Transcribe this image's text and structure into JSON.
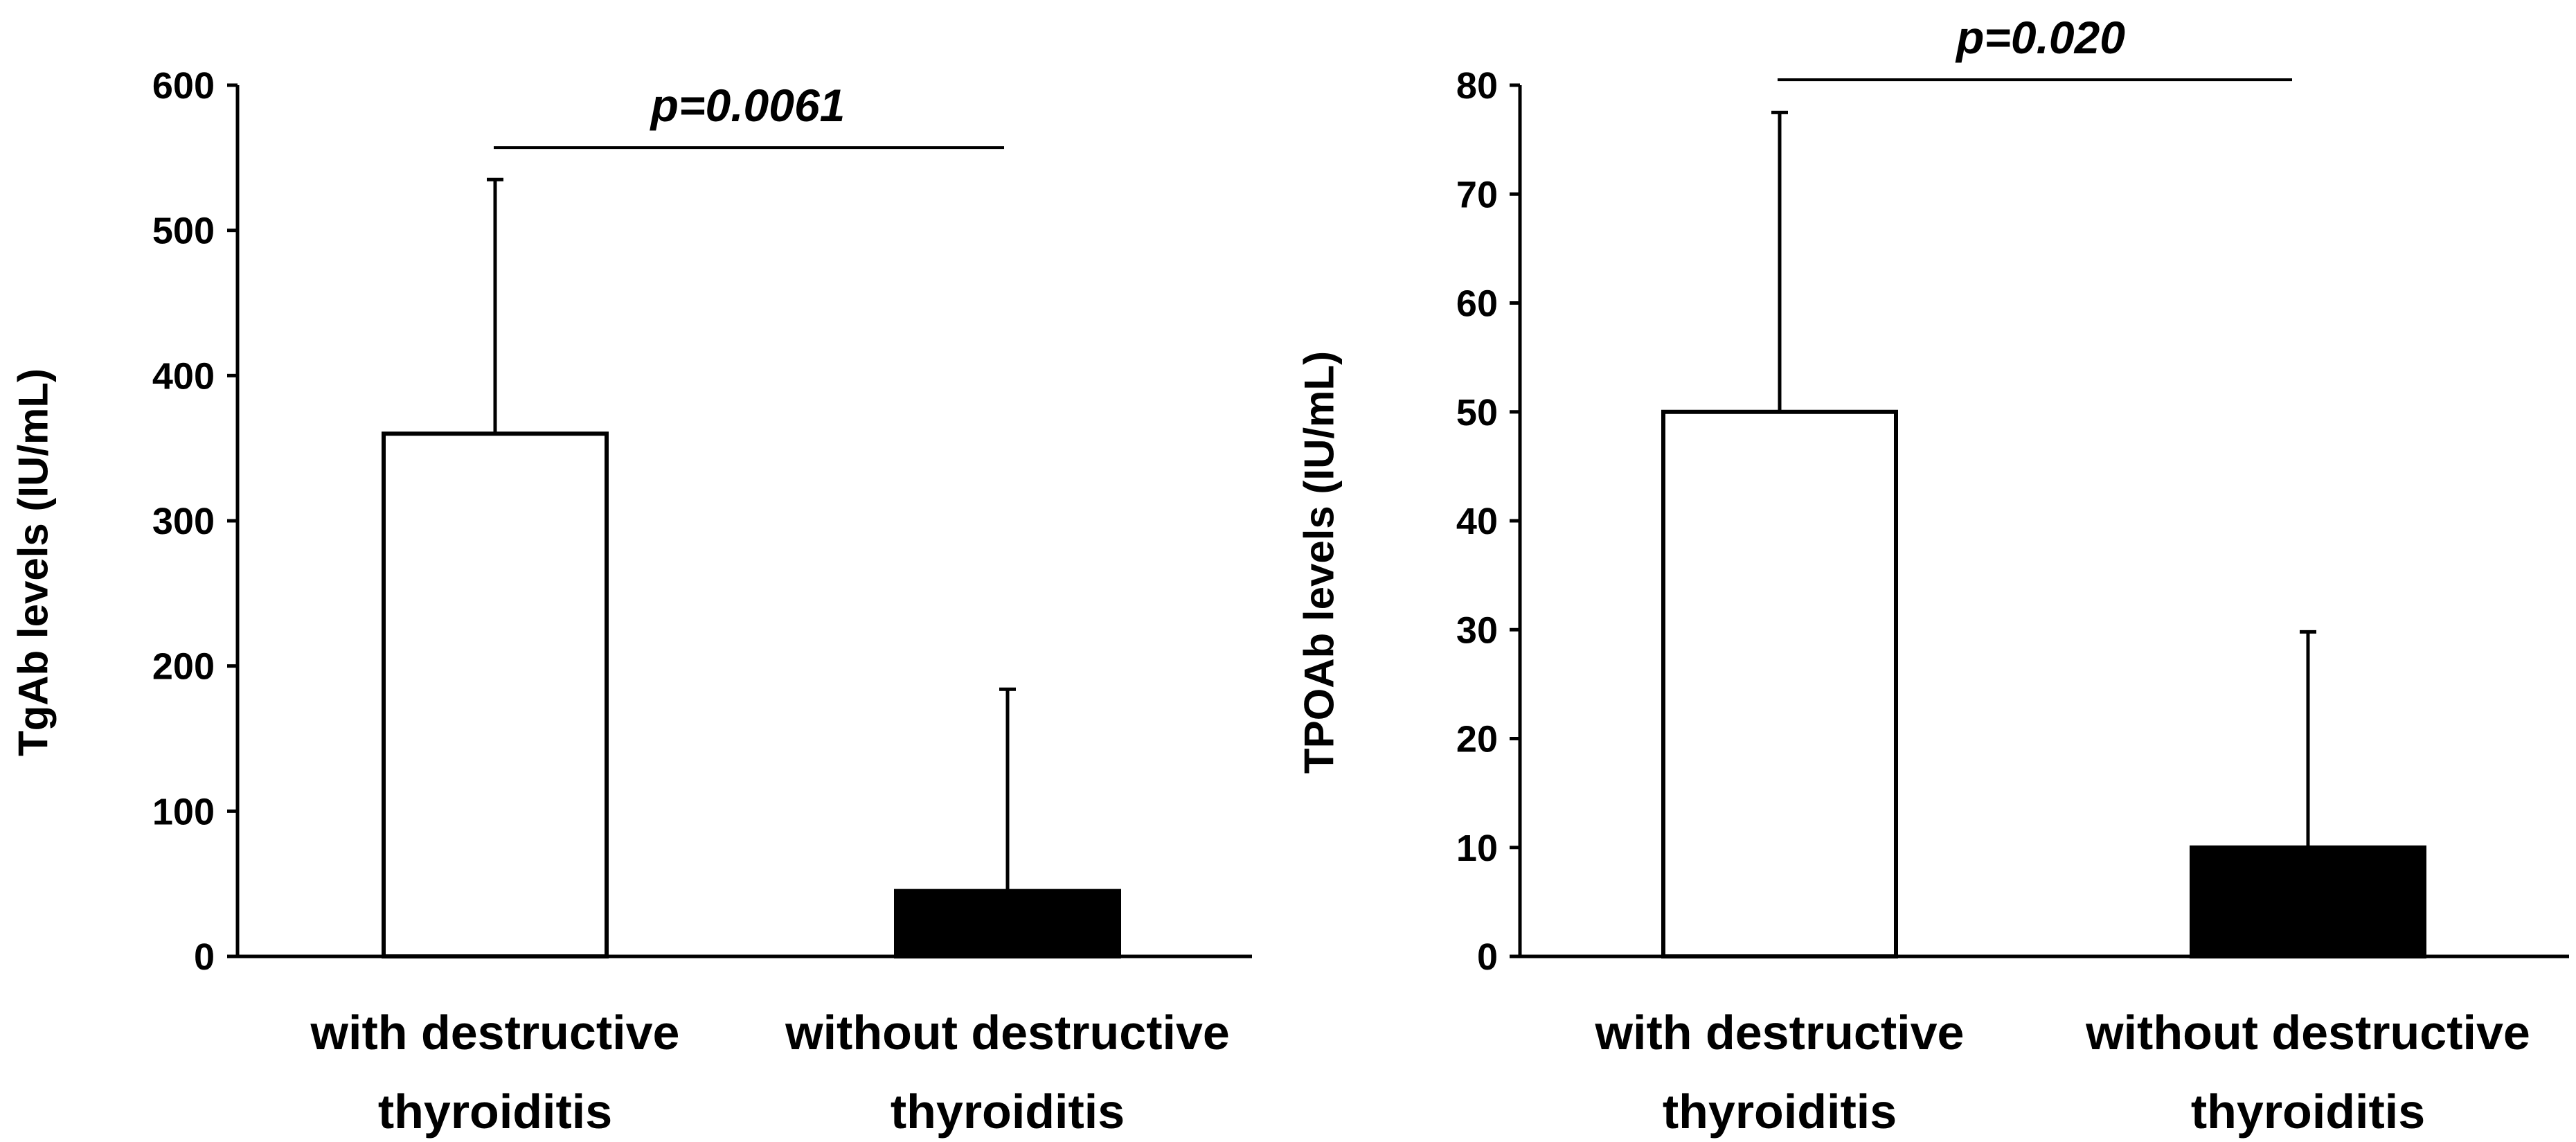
{
  "chart_data": [
    {
      "type": "bar",
      "categories": [
        [
          "with destructive",
          "thyroiditis"
        ],
        [
          "without destructive",
          "thyroiditis"
        ]
      ],
      "values": [
        360,
        45
      ],
      "error_upper": [
        535,
        184
      ],
      "bar_fill": [
        "#ffffff",
        "#000000"
      ],
      "ylabel": "TgAb levels (IU/mL)",
      "ylim": [
        0,
        600
      ],
      "yticks": [
        0,
        100,
        200,
        300,
        400,
        500,
        600
      ],
      "grid": false,
      "annotation": {
        "text": "p=0.0061",
        "bracket_y": 557
      }
    },
    {
      "type": "bar",
      "categories": [
        [
          "with destructive",
          "thyroiditis"
        ],
        [
          "without destructive",
          "thyroiditis"
        ]
      ],
      "values": [
        50,
        10
      ],
      "error_upper": [
        77.5,
        29.8
      ],
      "bar_fill": [
        "#ffffff",
        "#000000"
      ],
      "ylabel": "TPOAb levels (IU/mL)",
      "ylim": [
        0,
        80
      ],
      "yticks": [
        0,
        10,
        20,
        30,
        40,
        50,
        60,
        70,
        80
      ],
      "grid": false,
      "annotation": {
        "text": "p=0.020",
        "bracket_y": 80.5
      }
    }
  ]
}
